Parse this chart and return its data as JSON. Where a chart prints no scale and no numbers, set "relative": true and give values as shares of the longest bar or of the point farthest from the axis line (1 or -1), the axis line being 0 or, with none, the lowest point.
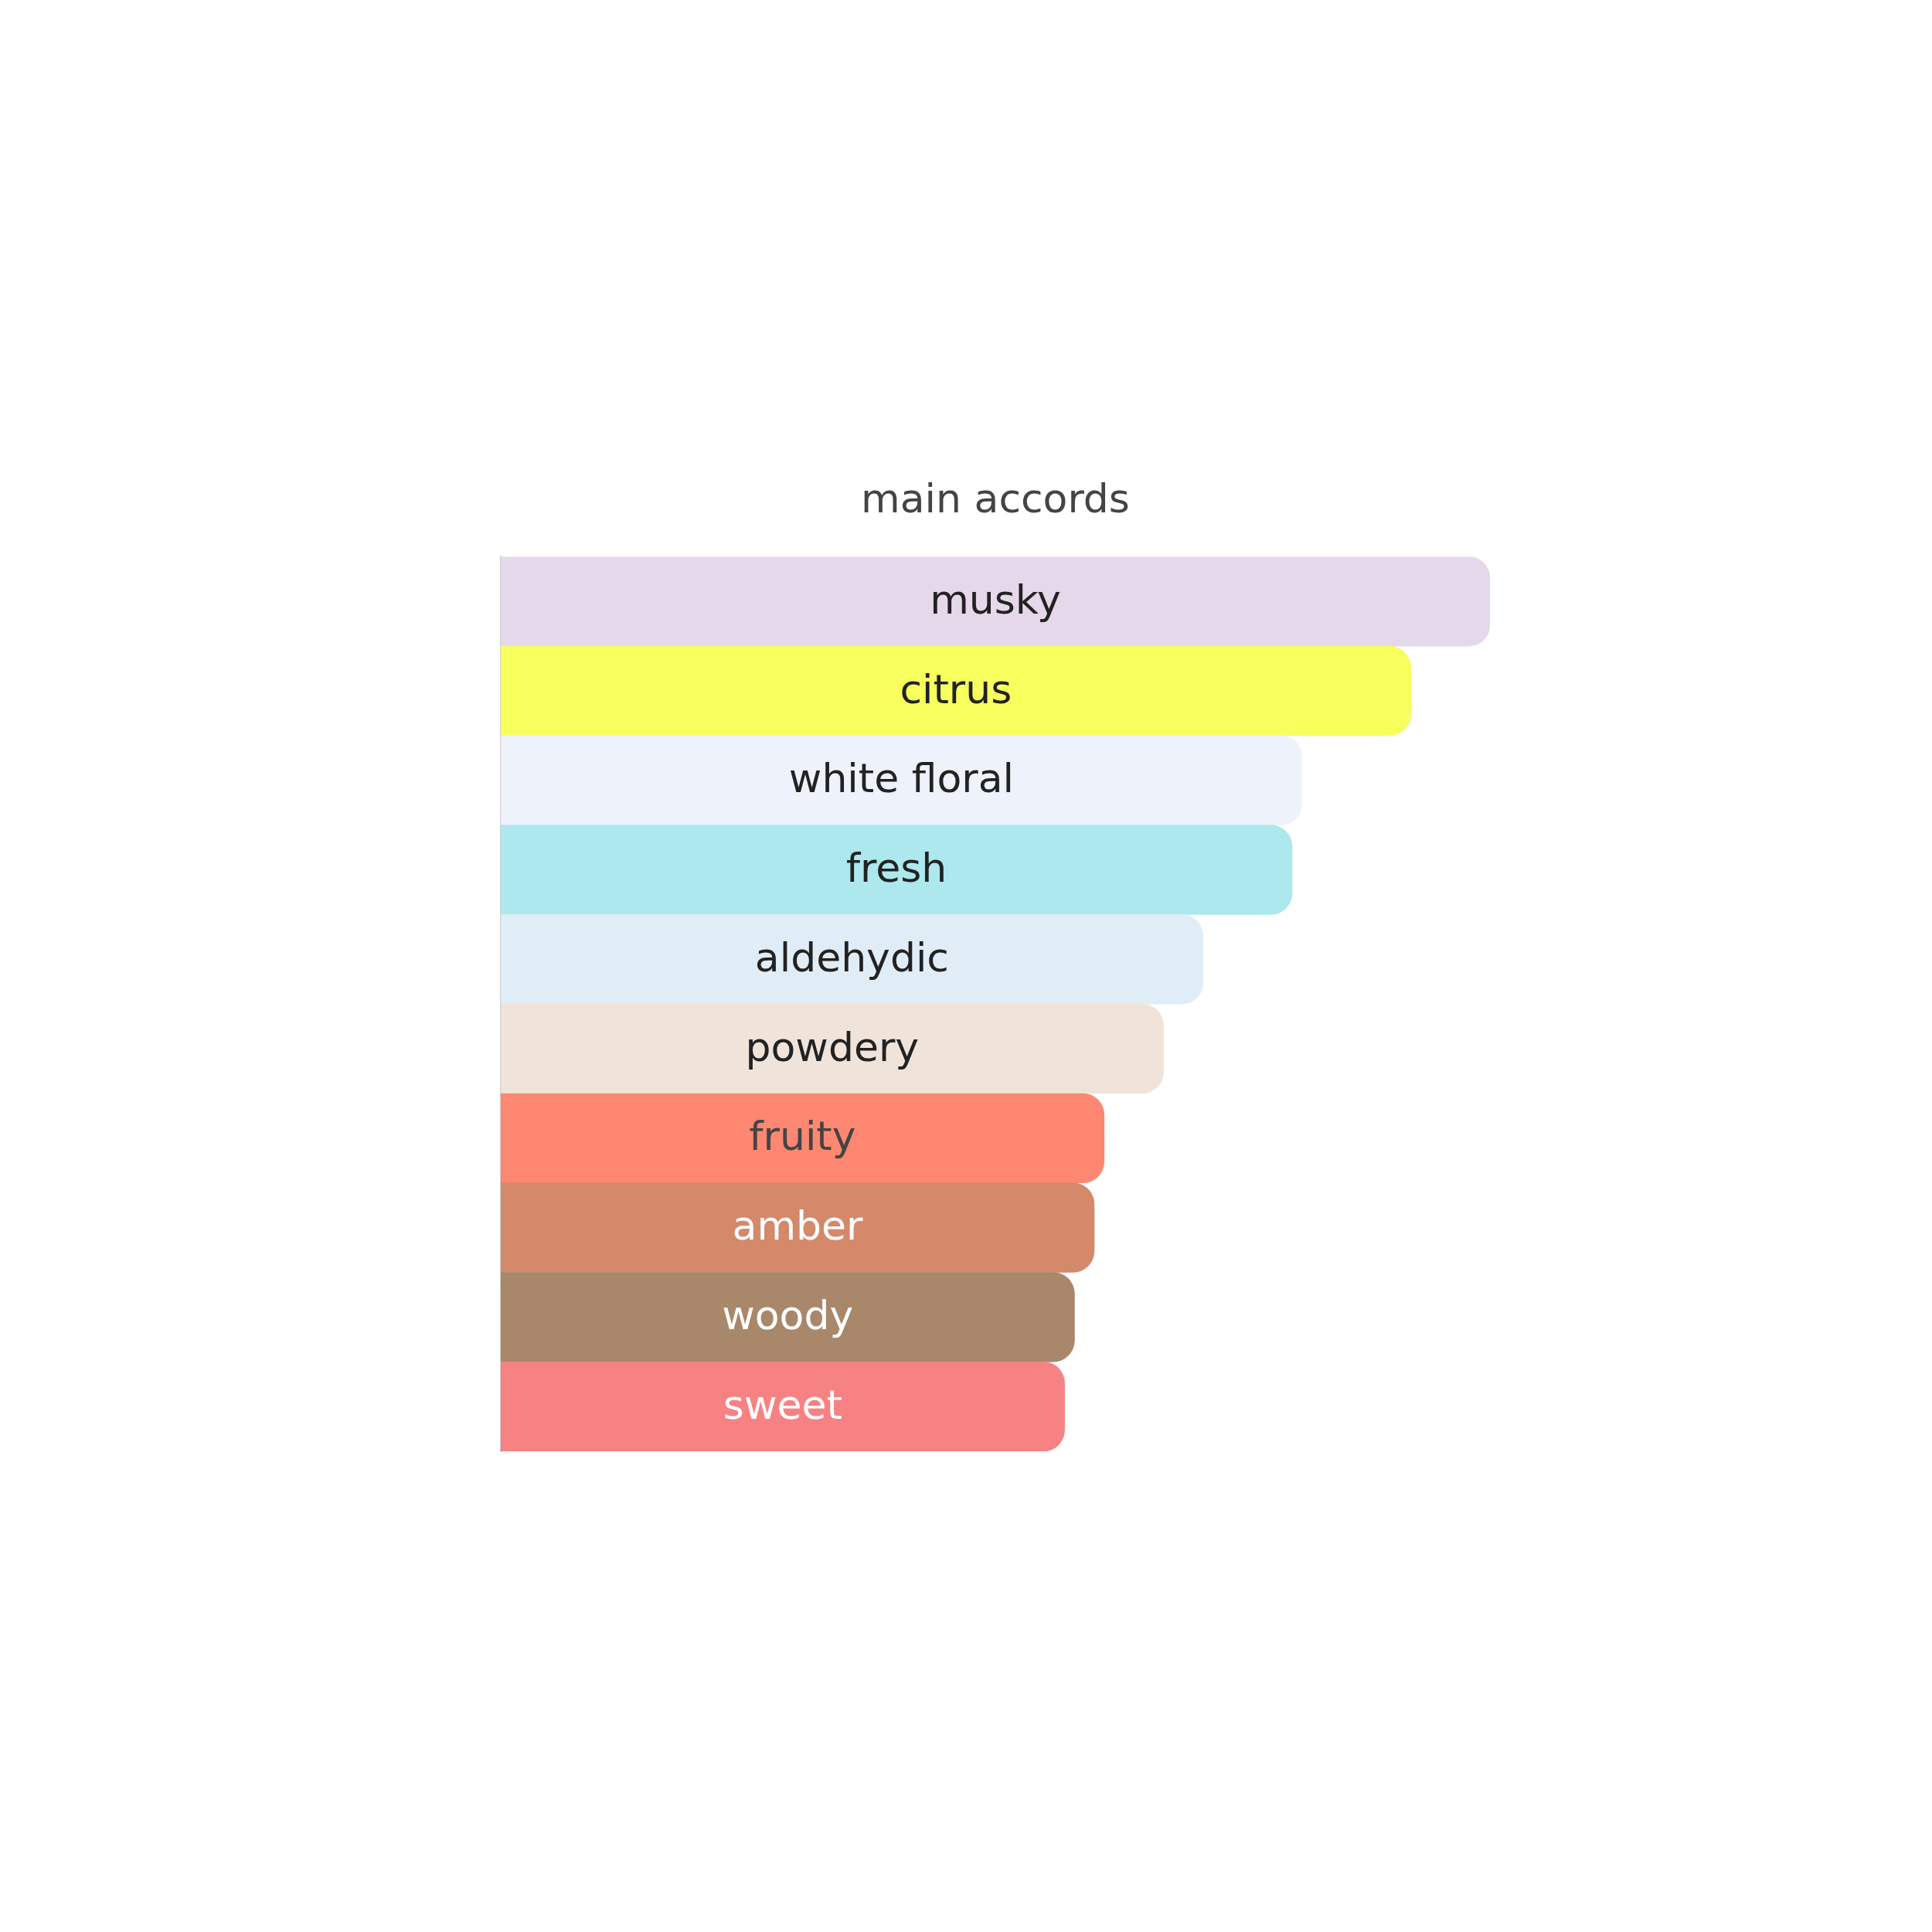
{
  "chart_data": {
    "type": "bar",
    "title": "main accords",
    "orientation": "horizontal",
    "relative": true,
    "categories": [
      "musky",
      "citrus",
      "white floral",
      "fresh",
      "aldehydic",
      "powdery",
      "fruity",
      "amber",
      "woody",
      "sweet"
    ],
    "values": [
      1,
      0.92,
      0.81,
      0.8,
      0.71,
      0.67,
      0.61,
      0.6,
      0.58,
      0.57
    ],
    "colors": [
      "#e5d8ea",
      "#f7ff5c",
      "#eef2fa",
      "#ace8ee",
      "#e1edf6",
      "#f0e4da",
      "#fd8771",
      "#d4896a",
      "#a8876b",
      "#f78284"
    ]
  }
}
